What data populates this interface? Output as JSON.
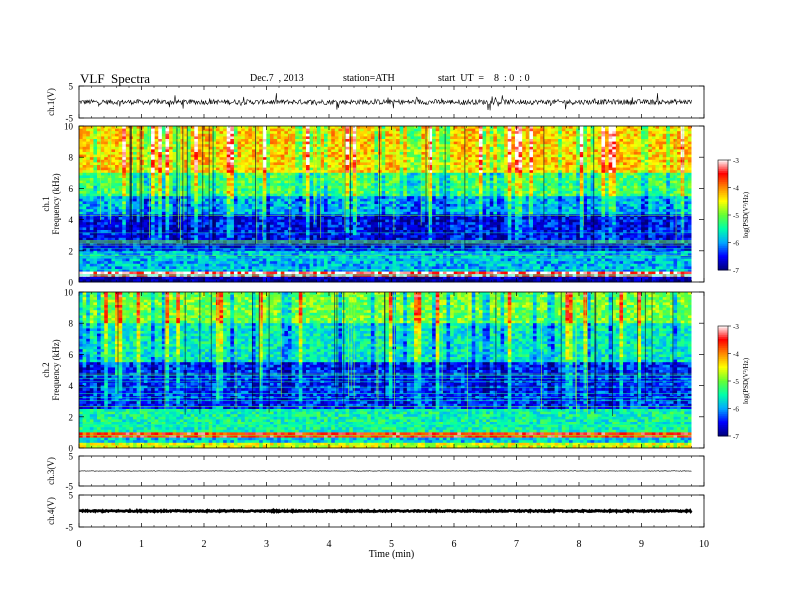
{
  "header": {
    "title": "VLF  Spectra",
    "date": "Dec.7  , 2013",
    "station": "station=ATH",
    "start": "start  UT  =    8  : 0  : 0"
  },
  "chart_data": [
    {
      "type": "line",
      "ylabel": "ch.1(V)",
      "ylim": [
        -5,
        5
      ],
      "yticks": [
        "5",
        "-5"
      ],
      "baseline": 0,
      "description": "broadband noise, amplitude mostly within ±1 V with spikes to ±2 V"
    },
    {
      "type": "heatmap",
      "ylabel": "ch.1\nFrequency  (kHz)",
      "ylim": [
        0,
        10
      ],
      "yticks": [
        "0",
        "2",
        "4",
        "6",
        "8",
        "10"
      ],
      "colorbar_label": "log(PSD(V²/Hz)",
      "colorbar_range": [
        -7,
        -3
      ],
      "colorbar_ticks": [
        "-3",
        "-4",
        "-5",
        "-6",
        "-7"
      ],
      "bands_khz": [
        {
          "from": 0,
          "to": 0.4,
          "log_psd": -6.9
        },
        {
          "from": 0.4,
          "to": 0.7,
          "log_psd": -3.2
        },
        {
          "from": 0.7,
          "to": 2,
          "log_psd": -5.9
        },
        {
          "from": 2,
          "to": 4.3,
          "log_psd": -6.5
        },
        {
          "from": 4.3,
          "to": 5.5,
          "log_psd": -5.9
        },
        {
          "from": 5.5,
          "to": 7,
          "log_psd": -5.2
        },
        {
          "from": 7,
          "to": 10,
          "log_psd": -4.3
        }
      ]
    },
    {
      "type": "heatmap",
      "ylabel": "ch.2\nFrequency  (kHz)",
      "ylim": [
        0,
        10
      ],
      "yticks": [
        "0",
        "2",
        "4",
        "6",
        "8",
        "10"
      ],
      "colorbar_label": "log(PSD(V²/Hz)",
      "colorbar_range": [
        -7,
        -3
      ],
      "colorbar_ticks": [
        "-3",
        "-4",
        "-5",
        "-6",
        "-7"
      ],
      "bands_khz": [
        {
          "from": 0,
          "to": 0.3,
          "log_psd": -4.6
        },
        {
          "from": 0.3,
          "to": 0.6,
          "log_psd": -5.8
        },
        {
          "from": 0.6,
          "to": 1.0,
          "log_psd": -3.6
        },
        {
          "from": 1.0,
          "to": 2.5,
          "log_psd": -5.5
        },
        {
          "from": 2.5,
          "to": 5.5,
          "log_psd": -6.4
        },
        {
          "from": 5.5,
          "to": 8,
          "log_psd": -5.6
        },
        {
          "from": 8,
          "to": 10,
          "log_psd": -5.0
        }
      ]
    },
    {
      "type": "line",
      "ylabel": "ch.3(V)",
      "ylim": [
        -5,
        5
      ],
      "yticks": [
        "5",
        "-5"
      ],
      "baseline": 0,
      "description": "near-flat signal"
    },
    {
      "type": "line",
      "ylabel": "ch.4(V)",
      "ylim": [
        -5,
        5
      ],
      "yticks": [
        "5",
        "-5"
      ],
      "baseline": 0,
      "description": "near-flat, thick trace"
    }
  ],
  "x_axis": {
    "label": "Time  (min)",
    "xlim": [
      0,
      10
    ],
    "data_end": 9.8,
    "ticks": [
      "0",
      "1",
      "2",
      "3",
      "4",
      "5",
      "6",
      "7",
      "8",
      "9",
      "10"
    ]
  },
  "colors": {
    "colormap": [
      "#00007a",
      "#0000ff",
      "#00aaff",
      "#00ffaa",
      "#66ff33",
      "#ffff00",
      "#ff8800",
      "#ff0000",
      "#ffffff"
    ]
  }
}
